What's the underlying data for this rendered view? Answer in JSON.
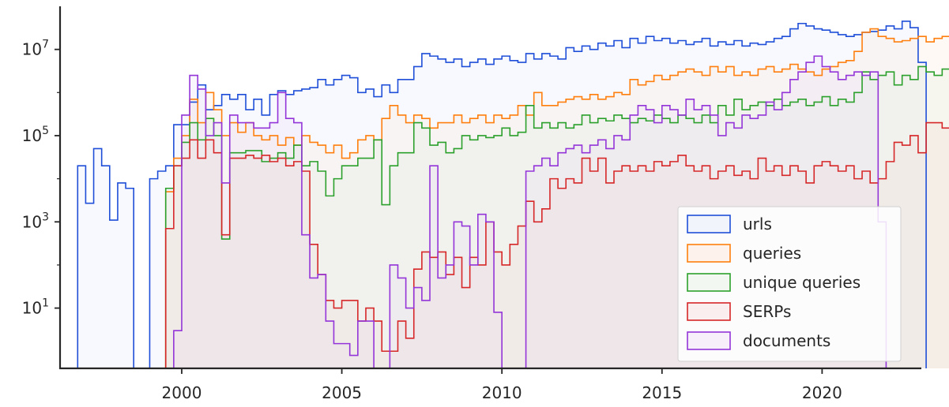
{
  "chart_data": {
    "type": "area",
    "title": "",
    "xlabel": "",
    "ylabel": "",
    "xlim": [
      1996.2,
      2023.1
    ],
    "ylim": [
      0.4,
      100000000
    ],
    "yscale": "log",
    "grid": false,
    "legend_position": "bottom-right",
    "bin_width_years": 0.25,
    "x_ticks": [
      2000,
      2005,
      2010,
      2015,
      2020
    ],
    "x_tick_labels": [
      "2000",
      "2005",
      "2010",
      "2015",
      "2020"
    ],
    "y_ticks": [
      {
        "value": 10,
        "base": "10",
        "exp": "1"
      },
      {
        "value": 1000,
        "base": "10",
        "exp": "3"
      },
      {
        "value": 100000,
        "base": "10",
        "exp": "5"
      },
      {
        "value": 10000000,
        "base": "10",
        "exp": "7"
      }
    ],
    "series": [
      {
        "name": "urls",
        "color": "#1f4fd8",
        "fill": "#dde4fb",
        "segments": [
          {
            "start": 1996.75,
            "values": [
              20000,
              2700,
              50000,
              20000,
              1100,
              8000,
              6000
            ]
          },
          {
            "start": 1999.0,
            "values": [
              10000,
              15000,
              20000,
              180000,
              180000,
              600000,
              1500000,
              400000,
              500000,
              900000,
              700000,
              900000,
              400000,
              700000,
              300000,
              900000,
              1100000,
              900000,
              1100000,
              1200000,
              1300000,
              2000000,
              1500000,
              2000000,
              2500000,
              2200000,
              1000000,
              1200000,
              800000,
              1500000,
              1000000,
              2000000,
              2000000,
              4000000,
              8000000,
              7000000,
              6000000,
              5000000,
              6000000,
              4000000,
              5000000,
              6000000,
              4500000,
              6000000,
              7000000,
              5500000,
              5000000,
              8000000,
              6000000,
              8000000,
              7000000,
              6000000,
              11000000,
              9000000,
              12000000,
              10000000,
              14000000,
              12000000,
              16000000,
              11000000,
              18000000,
              14000000,
              20000000,
              16000000,
              18000000,
              14000000,
              16000000,
              13000000,
              15000000,
              18000000,
              12000000,
              15000000,
              13000000,
              16000000,
              12000000,
              14000000,
              13000000,
              15000000,
              18000000,
              20000000,
              30000000,
              40000000,
              35000000,
              30000000,
              28000000,
              25000000,
              22000000,
              20000000,
              22000000,
              25000000,
              26000000,
              28000000,
              35000000,
              30000000,
              45000000,
              32000000,
              5000000
            ]
          }
        ]
      },
      {
        "name": "queries",
        "color": "#ff7f0e",
        "fill": "#fbe3cf",
        "segments": [
          {
            "start": 1999.5,
            "values": [
              5000,
              30000,
              100000,
              700000,
              200000,
              1000000,
              400000,
              100000,
              200000,
              120000,
              200000,
              100000,
              80000,
              100000,
              60000,
              90000,
              60000,
              100000,
              70000,
              60000,
              40000,
              60000,
              30000,
              40000,
              80000,
              100000,
              80000,
              250000,
              500000,
              300000,
              200000,
              300000,
              250000,
              150000,
              200000,
              200000,
              300000,
              200000,
              250000,
              300000,
              200000,
              300000,
              250000,
              300000,
              500000,
              300000,
              1000000,
              500000,
              500000,
              600000,
              700000,
              800000,
              700000,
              900000,
              700000,
              800000,
              1000000,
              900000,
              2000000,
              1500000,
              1800000,
              2500000,
              2000000,
              2500000,
              3000000,
              3500000,
              3000000,
              2500000,
              4000000,
              3000000,
              4000000,
              2500000,
              3000000,
              2500000,
              3500000,
              4000000,
              3000000,
              3500000,
              4500000,
              3500000,
              3000000,
              2500000,
              3500000,
              4000000,
              5000000,
              5500000,
              9000000,
              25000000,
              30000000,
              20000000,
              18000000,
              15000000,
              16000000,
              18000000,
              20000000,
              15000000,
              18000000,
              20000000,
              16000000,
              18000000,
              25000000,
              20000000,
              2000000
            ]
          }
        ]
      },
      {
        "name": "unique queries",
        "color": "#2ca02c",
        "fill": "#dcefdc",
        "segments": [
          {
            "start": 1999.5,
            "values": [
              6000,
              20000,
              70000,
              200000,
              80000,
              250000,
              100000,
              400,
              40000,
              40000,
              45000,
              45000,
              25000,
              30000,
              40000,
              30000,
              60000,
              20000,
              25000,
              15000,
              4000,
              10000,
              20000,
              20000,
              30000,
              30000,
              80000,
              2500,
              20000,
              40000,
              40000,
              200000,
              150000,
              60000,
              70000,
              40000,
              50000,
              100000,
              80000,
              100000,
              90000,
              100000,
              150000,
              100000,
              120000,
              500000,
              150000,
              200000,
              150000,
              200000,
              150000,
              180000,
              300000,
              200000,
              250000,
              220000,
              300000,
              250000,
              200000,
              250000,
              220000,
              300000,
              250000,
              200000,
              300000,
              250000,
              200000,
              300000,
              200000,
              500000,
              300000,
              700000,
              400000,
              500000,
              600000,
              500000,
              700000,
              500000,
              600000,
              700000,
              500000,
              600000,
              800000,
              500000,
              700000,
              600000,
              1000000,
              3000000,
              2000000,
              2500000,
              3000000,
              1500000,
              2500000,
              2000000,
              4000000,
              3000000,
              2500000,
              3500000,
              2500000,
              3000000,
              2500000,
              3000000,
              500000
            ]
          }
        ]
      },
      {
        "name": "SERPs",
        "color": "#d62728",
        "fill": "#f3d3d3",
        "segments": [
          {
            "start": 1999.5,
            "values": [
              700,
              20000,
              30000,
              80000,
              30000,
              80000,
              40000,
              500,
              30000,
              30000,
              35000,
              30000,
              35000,
              25000,
              30000,
              20000,
              25000,
              15000,
              300,
              60,
              15,
              10,
              15,
              15,
              5,
              10,
              5,
              1,
              1,
              5,
              2,
              80,
              200,
              150,
              200,
              60,
              150,
              30,
              150,
              100,
              1000,
              200,
              100,
              300,
              800,
              3000,
              1000,
              2000,
              10000,
              6000,
              10000,
              8000,
              30000,
              15000,
              30000,
              8000,
              15000,
              20000,
              15000,
              20000,
              15000,
              25000,
              20000,
              25000,
              35000,
              20000,
              15000,
              20000,
              10000,
              15000,
              20000,
              12000,
              15000,
              10000,
              30000,
              15000,
              20000,
              12000,
              20000,
              15000,
              8000,
              20000,
              25000,
              20000,
              15000,
              20000,
              10000,
              15000,
              8000,
              10000,
              25000,
              70000,
              60000,
              100000,
              40000,
              200000,
              200000,
              150000,
              250000,
              300000,
              250000,
              300000,
              200000,
              100000,
              250000,
              200000,
              150000,
              250000,
              80000,
              300000,
              250000,
              300000,
              250000,
              300000,
              250000,
              400000,
              500000,
              350000,
              500000,
              400000,
              300
            ]
          }
        ]
      },
      {
        "name": "documents",
        "color": "#9335d8",
        "fill": "#ead8f5",
        "segments": [
          {
            "start": 1999.75,
            "values": [
              3,
              300000,
              2500000,
              1200000,
              100000,
              200000,
              8000,
              300000,
              200000,
              200000,
              150000,
              150000,
              200000,
              1000000,
              250000,
              200000,
              500,
              50,
              60,
              5,
              1.5,
              1.5,
              0.8,
              5,
              5
            ]
          },
          {
            "start": 2006.5,
            "values": [
              100,
              50,
              10,
              30,
              15,
              20000,
              50,
              100,
              1000,
              800,
              100,
              1500,
              1000,
              8
            ]
          },
          {
            "start": 2010.75,
            "values": [
              15000,
              20000,
              30000,
              20000,
              40000,
              50000,
              60000,
              40000,
              60000,
              80000,
              50000,
              100000,
              80000,
              300000,
              500000,
              400000,
              200000,
              500000,
              400000,
              300000,
              700000,
              400000,
              500000,
              300000,
              100000,
              200000,
              150000,
              300000,
              250000,
              300000,
              600000,
              400000,
              1000000,
              2000000,
              3000000,
              5000000,
              7000000,
              4000000,
              3000000,
              2000000,
              2500000,
              3000000,
              2500000,
              3000000,
              1000
            ]
          }
        ]
      }
    ]
  }
}
